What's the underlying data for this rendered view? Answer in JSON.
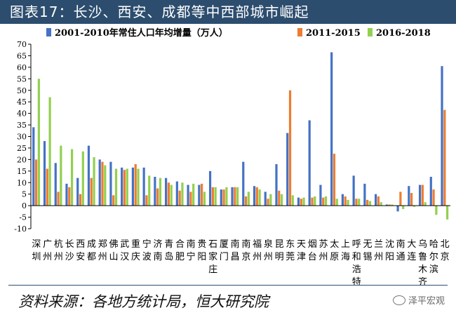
{
  "figure_title": "图表17：长沙、西安、成都等中西部城市崛起",
  "source_note": "资料来源：各地方统计局，恒大研究院",
  "watermark_text": "泽平宏观",
  "chart_data": {
    "type": "bar",
    "title": "",
    "xlabel": "",
    "ylabel": "",
    "ylim": [
      -10,
      70
    ],
    "yticks": [
      -10,
      -5,
      0,
      5,
      10,
      15,
      20,
      25,
      30,
      35,
      40,
      45,
      50,
      55,
      60,
      65,
      70
    ],
    "grid": false,
    "legend_position": "top",
    "categories": [
      "深圳",
      "广州",
      "杭州",
      "长沙",
      "西安",
      "成都",
      "郑州",
      "佛山",
      "武汉",
      "重庆",
      "宁波",
      "济南",
      "青岛",
      "合肥",
      "南宁",
      "贵阳",
      "石家庄",
      "厦门",
      "南昌",
      "南京",
      "福州",
      "泉州",
      "昆明",
      "东莞",
      "天津",
      "烟台",
      "苏州",
      "太原",
      "上海",
      "呼和浩特",
      "无锡",
      "兰州",
      "沈阳",
      "南通",
      "大连",
      "乌鲁木齐",
      "哈尔滨",
      "北京"
    ],
    "series": [
      {
        "name": "2001-2010年常住人口年均增量（万人）",
        "color": "#4472c4",
        "values": [
          34,
          28,
          18.5,
          9.5,
          12,
          26,
          20,
          19,
          16.5,
          16.5,
          16.5,
          12.5,
          12,
          10.5,
          9,
          9,
          15,
          7,
          8,
          19,
          8.5,
          6,
          18,
          31.5,
          3.5,
          37,
          9,
          66.5,
          5,
          13,
          9.5,
          5,
          0.5,
          -2.5,
          8.5,
          9,
          12.5,
          60.5
        ]
      },
      {
        "name": "2011-2015",
        "color": "#ed7d31",
        "values": [
          20,
          16,
          6,
          8,
          5,
          12,
          19,
          4.5,
          15.5,
          18,
          4.5,
          7.5,
          10,
          6.5,
          6,
          9.5,
          8,
          7,
          8,
          4,
          8,
          3,
          6.5,
          50,
          3,
          3.5,
          3.5,
          22.5,
          4,
          3,
          2.5,
          4,
          0.5,
          6,
          5.5,
          9,
          7,
          41.5
        ]
      },
      {
        "name": "2016-2018",
        "color": "#92d050",
        "values": [
          55,
          47,
          26,
          24.5,
          23.5,
          21,
          17.5,
          16,
          16,
          16,
          13,
          12,
          9,
          10,
          9.5,
          6,
          8,
          8,
          8,
          6,
          7,
          5,
          5,
          4.5,
          3.5,
          4,
          4,
          3,
          2.5,
          3,
          2,
          1.5,
          0.5,
          -1.5,
          -0.5,
          1.5,
          -4,
          -6
        ]
      }
    ]
  }
}
